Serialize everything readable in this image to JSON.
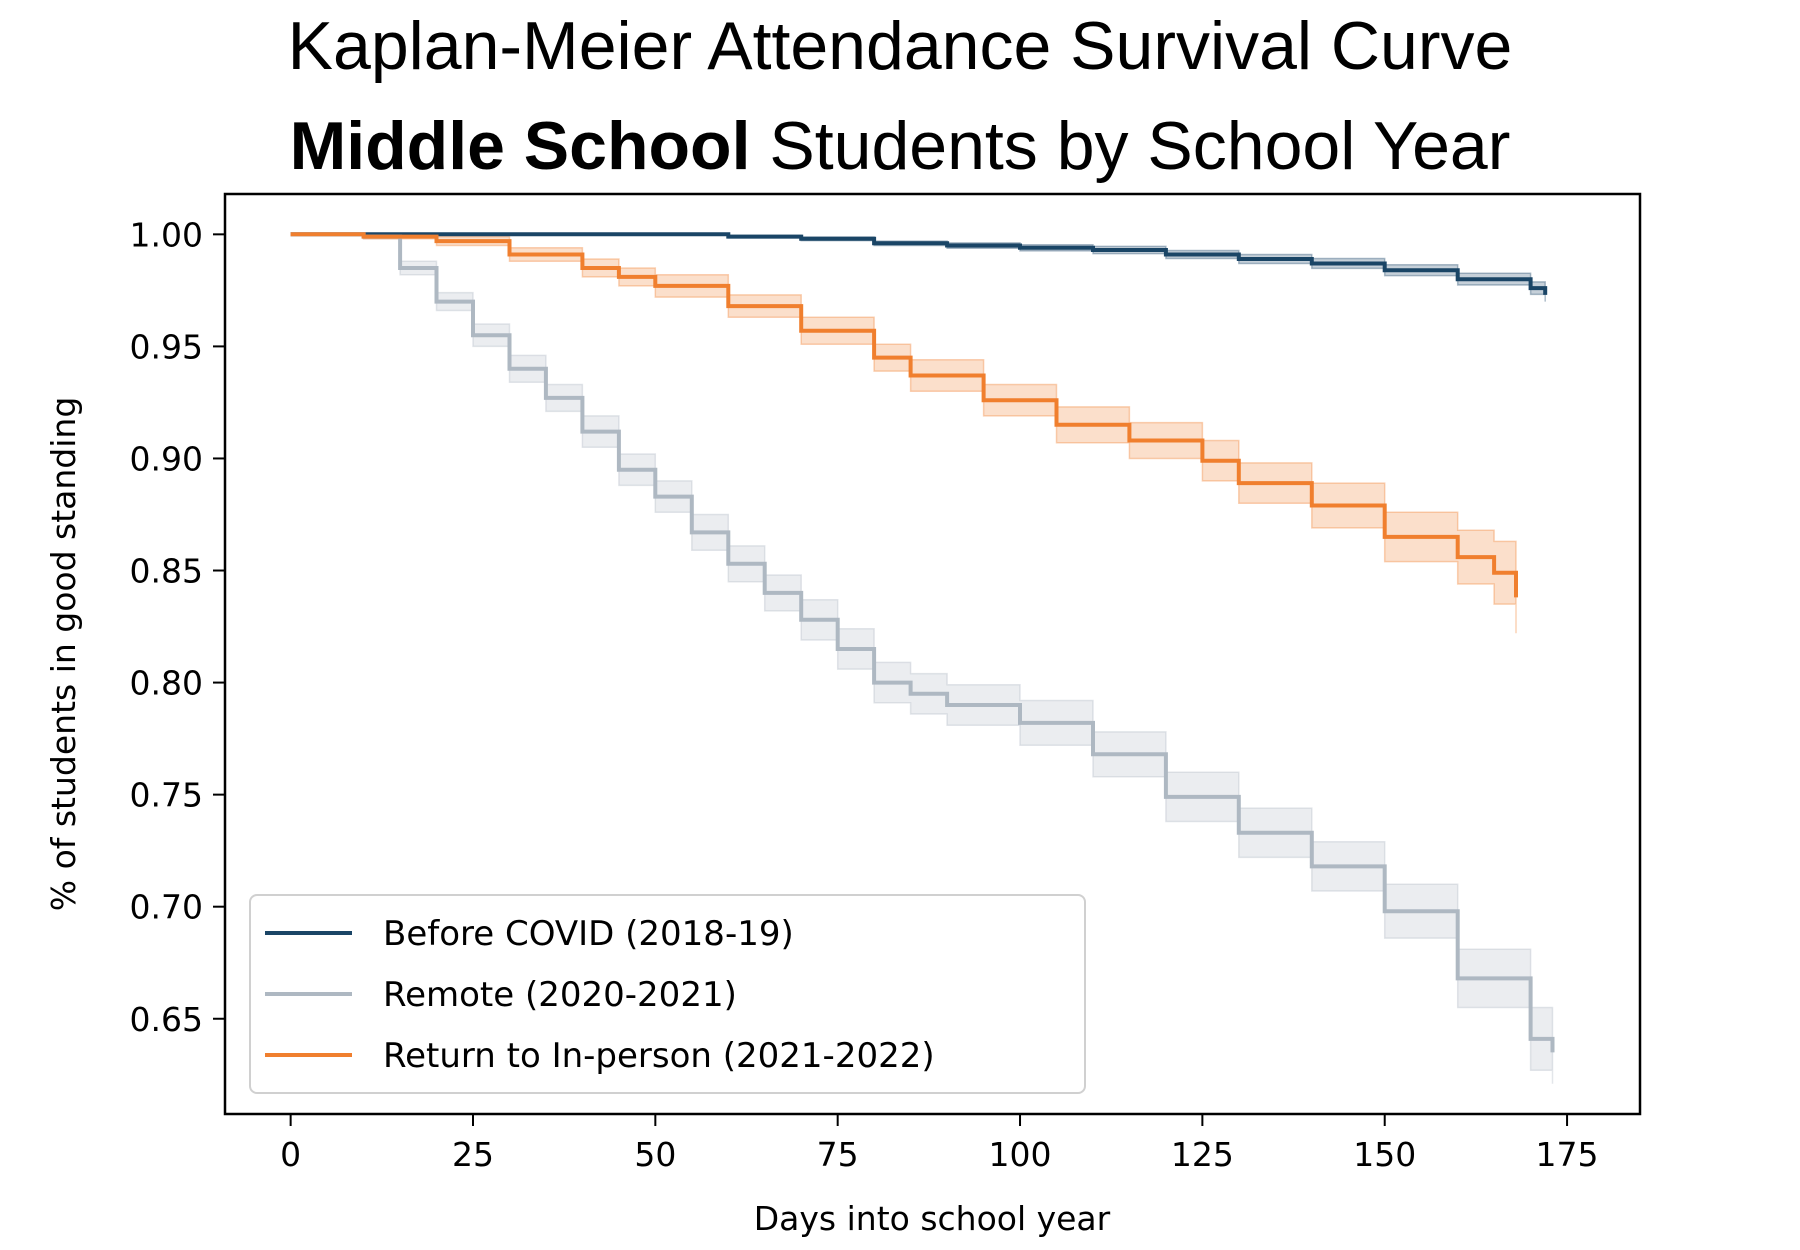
{
  "title": {
    "line1": "Kaplan-Meier Attendance Survival Curve",
    "line2_bold": "Middle School",
    "line2_rest": " Students by School Year"
  },
  "chart_data": {
    "type": "line",
    "step": true,
    "xlabel": "Days into school year",
    "ylabel": "% of students in good standing",
    "xlim": [
      -9,
      185
    ],
    "ylim": [
      0.6075,
      1.018
    ],
    "xticks": [
      0,
      25,
      50,
      75,
      100,
      125,
      150,
      175
    ],
    "yticks": [
      "1.00",
      "0.95",
      "0.90",
      "0.85",
      "0.80",
      "0.75",
      "0.70",
      "0.65"
    ],
    "legend_position": "lower-left",
    "series": [
      {
        "name": "Before COVID (2018-19)",
        "color": "#1a4566",
        "points": [
          [
            0,
            1.0
          ],
          [
            45,
            1.0
          ],
          [
            60,
            0.999
          ],
          [
            70,
            0.998
          ],
          [
            80,
            0.996
          ],
          [
            90,
            0.995
          ],
          [
            100,
            0.994
          ],
          [
            110,
            0.993
          ],
          [
            120,
            0.991
          ],
          [
            130,
            0.989
          ],
          [
            140,
            0.987
          ],
          [
            150,
            0.984
          ],
          [
            160,
            0.98
          ],
          [
            170,
            0.976
          ],
          [
            172,
            0.973
          ]
        ],
        "band": [
          0.0,
          0.0,
          0.0006,
          0.0008,
          0.001,
          0.0012,
          0.0014,
          0.0016,
          0.0018,
          0.002,
          0.0022,
          0.0024,
          0.0026,
          0.0028,
          0.003
        ]
      },
      {
        "name": "Remote (2020-2021)",
        "color": "#aeb8c2",
        "points": [
          [
            0,
            1.0
          ],
          [
            10,
            0.999
          ],
          [
            15,
            0.985
          ],
          [
            20,
            0.97
          ],
          [
            25,
            0.955
          ],
          [
            30,
            0.94
          ],
          [
            35,
            0.927
          ],
          [
            40,
            0.912
          ],
          [
            45,
            0.895
          ],
          [
            50,
            0.883
          ],
          [
            55,
            0.867
          ],
          [
            60,
            0.853
          ],
          [
            65,
            0.84
          ],
          [
            70,
            0.828
          ],
          [
            75,
            0.815
          ],
          [
            80,
            0.8
          ],
          [
            85,
            0.795
          ],
          [
            90,
            0.79
          ],
          [
            100,
            0.782
          ],
          [
            110,
            0.768
          ],
          [
            120,
            0.749
          ],
          [
            130,
            0.733
          ],
          [
            140,
            0.718
          ],
          [
            150,
            0.698
          ],
          [
            160,
            0.668
          ],
          [
            170,
            0.641
          ],
          [
            173,
            0.635
          ]
        ],
        "band": [
          0.0,
          0.001,
          0.003,
          0.004,
          0.005,
          0.006,
          0.006,
          0.007,
          0.007,
          0.007,
          0.008,
          0.008,
          0.008,
          0.009,
          0.009,
          0.009,
          0.009,
          0.009,
          0.01,
          0.01,
          0.011,
          0.011,
          0.011,
          0.012,
          0.013,
          0.014,
          0.014
        ]
      },
      {
        "name": "Return to In-person (2021-2022)",
        "color": "#f07f2e",
        "points": [
          [
            0,
            1.0
          ],
          [
            10,
            0.999
          ],
          [
            20,
            0.997
          ],
          [
            30,
            0.991
          ],
          [
            40,
            0.985
          ],
          [
            45,
            0.981
          ],
          [
            50,
            0.977
          ],
          [
            60,
            0.968
          ],
          [
            70,
            0.957
          ],
          [
            80,
            0.945
          ],
          [
            85,
            0.937
          ],
          [
            95,
            0.926
          ],
          [
            105,
            0.915
          ],
          [
            115,
            0.908
          ],
          [
            125,
            0.899
          ],
          [
            130,
            0.889
          ],
          [
            140,
            0.879
          ],
          [
            150,
            0.865
          ],
          [
            160,
            0.856
          ],
          [
            165,
            0.849
          ],
          [
            168,
            0.838
          ]
        ],
        "band": [
          0.0,
          0.001,
          0.002,
          0.003,
          0.004,
          0.004,
          0.005,
          0.005,
          0.006,
          0.006,
          0.007,
          0.007,
          0.008,
          0.008,
          0.009,
          0.009,
          0.01,
          0.011,
          0.012,
          0.014,
          0.016
        ]
      }
    ]
  }
}
